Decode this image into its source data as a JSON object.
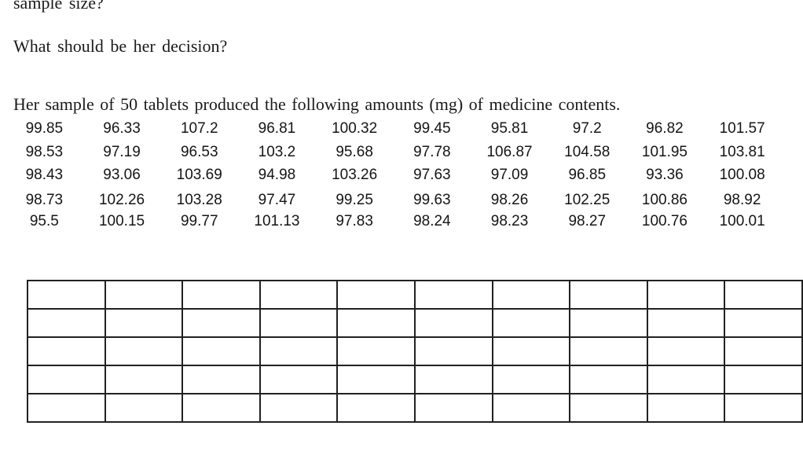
{
  "document": {
    "top_cut_line": "sample size?",
    "question": "What should be her decision?",
    "intro": "Her sample of 50 tablets produced the following amounts (mg) of medicine contents.",
    "sample_values": [
      [
        "99.85",
        "96.33",
        "107.2",
        "96.81",
        "100.32",
        "99.45",
        "95.81",
        "97.2",
        "96.82",
        "101.57"
      ],
      [
        "98.53",
        "97.19",
        "96.53",
        "103.2",
        "95.68",
        "97.78",
        "106.87",
        "104.58",
        "101.95",
        "103.81"
      ],
      [
        "98.43",
        "93.06",
        "103.69",
        "94.98",
        "103.26",
        "97.63",
        "97.09",
        "96.85",
        "93.36",
        "100.08"
      ],
      [
        "98.73",
        "102.26",
        "103.28",
        "97.47",
        "99.25",
        "99.63",
        "98.26",
        "102.25",
        "100.86",
        "98.92"
      ],
      [
        "95.5",
        "100.15",
        "99.77",
        "101.13",
        "97.83",
        "98.24",
        "98.23",
        "98.27",
        "100.76",
        "100.01"
      ]
    ],
    "empty_table": {
      "rows": 5,
      "cols": 10
    },
    "colors": {
      "text": "#1a1a1a",
      "table_border": "#212121"
    }
  }
}
